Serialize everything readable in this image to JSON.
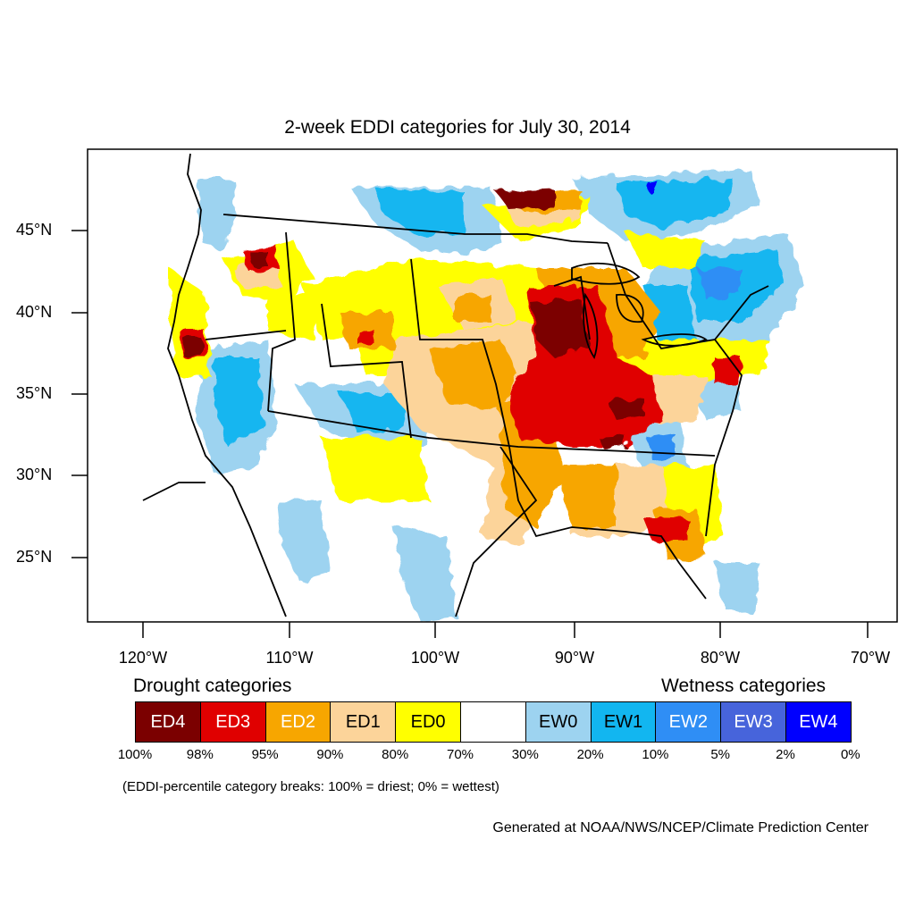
{
  "title": "2-week EDDI categories for July 30, 2014",
  "latitude_labels": [
    "45°N",
    "40°N",
    "35°N",
    "30°N",
    "25°N"
  ],
  "longitude_labels": [
    "120°W",
    "110°W",
    "100°W",
    "90°W",
    "80°W",
    "70°W"
  ],
  "legend": {
    "drought_heading": "Drought categories",
    "wetness_heading": "Wetness categories",
    "categories": [
      {
        "label": "ED4",
        "color": "#7b0000",
        "text_color": "#ffffff"
      },
      {
        "label": "ED3",
        "color": "#e00000",
        "text_color": "#ffffff"
      },
      {
        "label": "ED2",
        "color": "#f7a600",
        "text_color": "#ffffff"
      },
      {
        "label": "ED1",
        "color": "#fcd49a",
        "text_color": "#000000"
      },
      {
        "label": "ED0",
        "color": "#ffff00",
        "text_color": "#000000"
      },
      {
        "label": "",
        "color": "#ffffff",
        "text_color": "#000000"
      },
      {
        "label": "EW0",
        "color": "#9dd3f0",
        "text_color": "#000000"
      },
      {
        "label": "EW1",
        "color": "#12b6f0",
        "text_color": "#000000"
      },
      {
        "label": "EW2",
        "color": "#2f8ef5",
        "text_color": "#ffffff"
      },
      {
        "label": "EW3",
        "color": "#4764db",
        "text_color": "#ffffff"
      },
      {
        "label": "EW4",
        "color": "#0000ff",
        "text_color": "#ffffff"
      }
    ],
    "percentile_breaks": [
      "100%",
      "98%",
      "95%",
      "90%",
      "80%",
      "70%",
      "30%",
      "20%",
      "10%",
      "5%",
      "2%",
      "0%"
    ]
  },
  "footnote": "(EDDI-percentile category breaks: 100% = driest; 0% = wettest)",
  "credit": "Generated at NOAA/NWS/NCEP/Climate Prediction Center"
}
